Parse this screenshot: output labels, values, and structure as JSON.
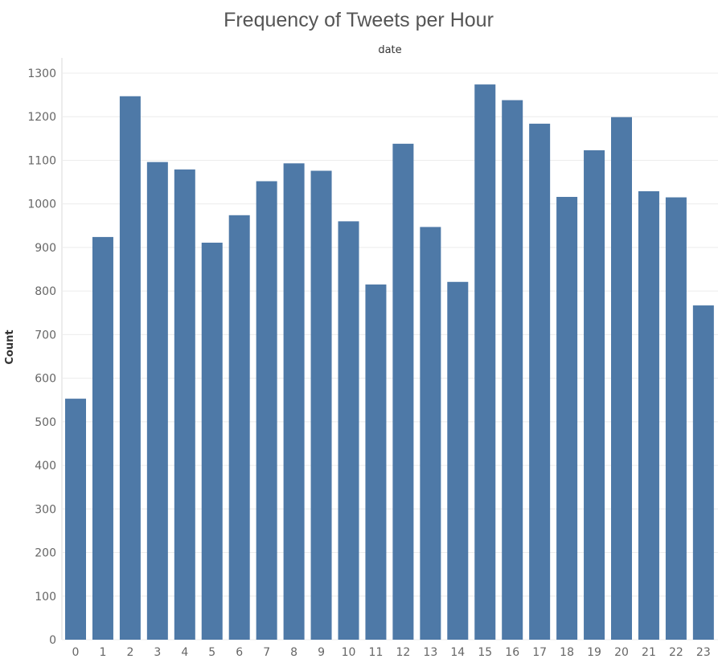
{
  "chart_data": {
    "type": "bar",
    "title": "Frequency of Tweets per Hour",
    "xlabel": "date",
    "ylabel": "Count",
    "categories": [
      "0",
      "1",
      "2",
      "3",
      "4",
      "5",
      "6",
      "7",
      "8",
      "9",
      "10",
      "11",
      "12",
      "13",
      "14",
      "15",
      "16",
      "17",
      "18",
      "19",
      "20",
      "21",
      "22",
      "23"
    ],
    "values": [
      553,
      924,
      1247,
      1096,
      1079,
      911,
      974,
      1052,
      1093,
      1076,
      960,
      815,
      1138,
      947,
      821,
      1274,
      1238,
      1184,
      1016,
      1123,
      1199,
      1029,
      1015,
      767
    ],
    "yticks": [
      0,
      100,
      200,
      300,
      400,
      500,
      600,
      700,
      800,
      900,
      1000,
      1100,
      1200,
      1300
    ],
    "ylim": [
      0,
      1300
    ],
    "grid": true,
    "legend": "none",
    "bar_color": "#4e79a7"
  }
}
